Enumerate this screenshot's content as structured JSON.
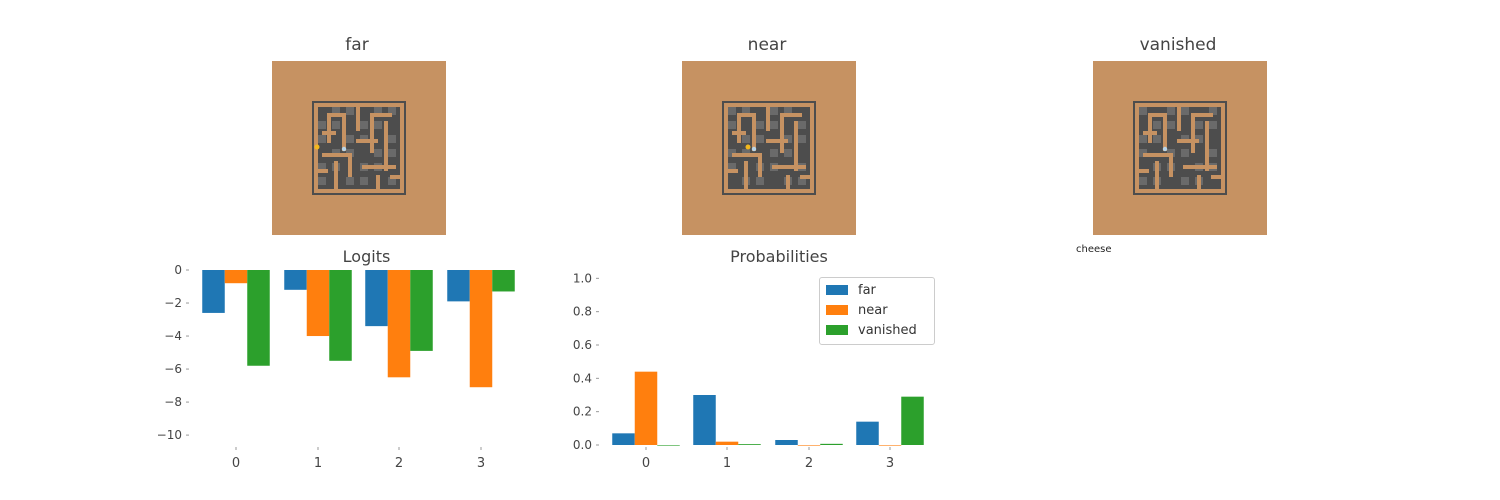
{
  "panels": [
    {
      "title": "far",
      "agent": true,
      "cheese": true
    },
    {
      "title": "near",
      "agent": true,
      "cheese": true
    },
    {
      "title": "vanished",
      "agent": true,
      "cheese": false
    }
  ],
  "stray_label": "cheese",
  "chart_data": [
    {
      "type": "bar",
      "title": "Logits",
      "categories": [
        "0",
        "1",
        "2",
        "3"
      ],
      "series": [
        {
          "name": "far",
          "color": "#1f77b4",
          "values": [
            -2.6,
            -1.2,
            -3.4,
            -1.9
          ]
        },
        {
          "name": "near",
          "color": "#ff7f0e",
          "values": [
            -0.8,
            -4.0,
            -6.5,
            -7.1
          ]
        },
        {
          "name": "vanished",
          "color": "#2ca02c",
          "values": [
            -5.8,
            -5.5,
            -4.9,
            -1.3
          ]
        }
      ],
      "ylim": [
        -10.6,
        0
      ],
      "yticks": [
        0,
        -2,
        -4,
        -6,
        -8,
        -10
      ],
      "ytick_labels": [
        "0",
        "−2",
        "−4",
        "−6",
        "−8",
        "−10"
      ],
      "grid": false,
      "legend": "none"
    },
    {
      "type": "bar",
      "title": "Probabilities",
      "categories": [
        "0",
        "1",
        "2",
        "3"
      ],
      "series": [
        {
          "name": "far",
          "color": "#1f77b4",
          "values": [
            0.07,
            0.3,
            0.03,
            0.14
          ]
        },
        {
          "name": "near",
          "color": "#ff7f0e",
          "values": [
            0.44,
            0.02,
            0.0,
            0.0
          ]
        },
        {
          "name": "vanished",
          "color": "#2ca02c",
          "values": [
            0.0,
            0.005,
            0.007,
            0.29
          ]
        }
      ],
      "ylim": [
        0,
        1.05
      ],
      "yticks": [
        0.0,
        0.2,
        0.4,
        0.6,
        0.8,
        1.0
      ],
      "ytick_labels": [
        "0.0",
        "0.2",
        "0.4",
        "0.6",
        "0.8",
        "1.0"
      ],
      "grid": false,
      "legend": "top-right",
      "legend_entries": [
        "far",
        "near",
        "vanished"
      ]
    }
  ]
}
